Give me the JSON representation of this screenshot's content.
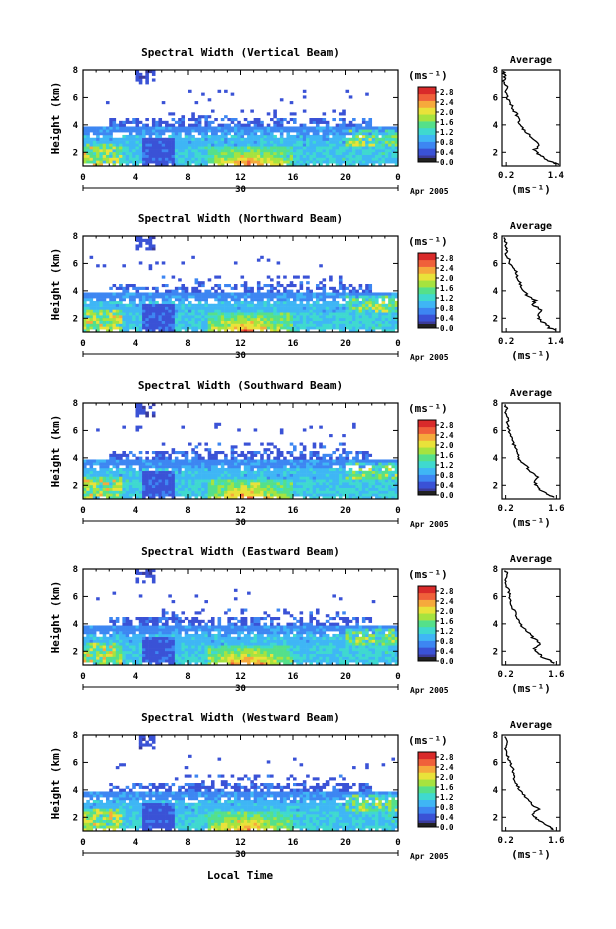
{
  "figure": {
    "xlabel": "Local Time",
    "date_label": "Apr 2005",
    "day_label": "30",
    "ylabel": "Height (km)",
    "colorbar_unit": "(ms⁻¹)",
    "profile_title": "Average",
    "profile_unit": "(ms⁻¹)"
  },
  "colors": {
    "colormap": [
      "#3b3b9a",
      "#3a52d6",
      "#3d86f2",
      "#3fb6f5",
      "#3fd9cf",
      "#55e08a",
      "#a6e33f",
      "#e9e23a",
      "#f6a93c",
      "#f0603a",
      "#d92a2a"
    ]
  },
  "chart_data": [
    {
      "type": "heatmap",
      "title": "Spectral Width (Vertical Beam)",
      "x_ticks": [
        "0",
        "4",
        "8",
        "12",
        "16",
        "20",
        "0"
      ],
      "y_ticks": [
        "2",
        "4",
        "6",
        "8"
      ],
      "xlim": [
        0,
        24
      ],
      "ylim": [
        1,
        8
      ],
      "colorbar_ticks": [
        "0.0",
        "0.4",
        "0.8",
        "1.2",
        "1.6",
        "2.0",
        "2.4",
        "2.8"
      ],
      "colorbar_range": [
        0,
        3.0
      ],
      "profile": {
        "title": "Average",
        "x_ticks": [
          "0.2",
          "1.4"
        ],
        "xlim": [
          0.1,
          1.5
        ],
        "y_ticks": [
          "2",
          "4",
          "6",
          "8"
        ],
        "ylim": [
          1,
          8
        ],
        "x": [
          1.45,
          1.3,
          1.1,
          0.95,
          0.9,
          1.0,
          0.8,
          0.75,
          0.6,
          0.55,
          0.5,
          0.45,
          0.35,
          0.3,
          0.22,
          0.18,
          0.2,
          0.15,
          0.18,
          0.12
        ],
        "y": [
          1.1,
          1.3,
          1.6,
          1.9,
          2.2,
          2.6,
          3.0,
          3.3,
          3.7,
          4.0,
          4.4,
          4.8,
          5.2,
          5.6,
          6.0,
          6.4,
          6.8,
          7.2,
          7.6,
          7.9
        ]
      }
    },
    {
      "type": "heatmap",
      "title": "Spectral Width (Northward Beam)",
      "x_ticks": [
        "0",
        "4",
        "8",
        "12",
        "16",
        "20",
        "0"
      ],
      "y_ticks": [
        "2",
        "4",
        "6",
        "8"
      ],
      "xlim": [
        0,
        24
      ],
      "ylim": [
        1,
        8
      ],
      "colorbar_ticks": [
        "0.0",
        "0.4",
        "0.8",
        "1.2",
        "1.6",
        "2.0",
        "2.4",
        "2.8"
      ],
      "colorbar_range": [
        0,
        3.0
      ],
      "profile": {
        "title": "Average",
        "x_ticks": [
          "0.2",
          "1.4"
        ],
        "xlim": [
          0.1,
          1.5
        ],
        "y_ticks": [
          "2",
          "4",
          "6",
          "8"
        ],
        "ylim": [
          1,
          8
        ],
        "x": [
          1.4,
          1.25,
          1.15,
          1.0,
          0.95,
          1.05,
          0.85,
          0.9,
          0.7,
          0.6,
          0.55,
          0.5,
          0.45,
          0.4,
          0.3,
          0.25,
          0.2,
          0.22,
          0.18,
          0.15
        ],
        "y": [
          1.1,
          1.3,
          1.6,
          1.9,
          2.2,
          2.6,
          3.0,
          3.3,
          3.7,
          4.0,
          4.4,
          4.8,
          5.2,
          5.6,
          6.0,
          6.4,
          6.8,
          7.2,
          7.6,
          7.9
        ]
      }
    },
    {
      "type": "heatmap",
      "title": "Spectral Width (Southward Beam)",
      "x_ticks": [
        "0",
        "4",
        "8",
        "12",
        "16",
        "20",
        "0"
      ],
      "y_ticks": [
        "2",
        "4",
        "6",
        "8"
      ],
      "xlim": [
        0,
        24
      ],
      "ylim": [
        1,
        8
      ],
      "colorbar_ticks": [
        "0.0",
        "0.4",
        "0.8",
        "1.2",
        "1.6",
        "2.0",
        "2.4",
        "2.8"
      ],
      "colorbar_range": [
        0,
        3.0
      ],
      "profile": {
        "title": "Average",
        "x_ticks": [
          "0.2",
          "1.6"
        ],
        "xlim": [
          0.1,
          1.7
        ],
        "y_ticks": [
          "2",
          "4",
          "6",
          "8"
        ],
        "ylim": [
          1,
          8
        ],
        "x": [
          1.55,
          1.4,
          1.2,
          1.05,
          1.0,
          1.1,
          0.9,
          0.8,
          0.65,
          0.55,
          0.5,
          0.45,
          0.4,
          0.35,
          0.3,
          0.28,
          0.25,
          0.2,
          0.25,
          0.18
        ],
        "y": [
          1.1,
          1.3,
          1.6,
          1.9,
          2.2,
          2.6,
          3.0,
          3.3,
          3.7,
          4.0,
          4.4,
          4.8,
          5.2,
          5.6,
          6.0,
          6.4,
          6.8,
          7.2,
          7.6,
          7.9
        ]
      }
    },
    {
      "type": "heatmap",
      "title": "Spectral Width (Eastward Beam)",
      "x_ticks": [
        "0",
        "4",
        "8",
        "12",
        "16",
        "20",
        "0"
      ],
      "y_ticks": [
        "2",
        "4",
        "6",
        "8"
      ],
      "xlim": [
        0,
        24
      ],
      "ylim": [
        1,
        8
      ],
      "colorbar_ticks": [
        "0.0",
        "0.4",
        "0.8",
        "1.2",
        "1.6",
        "2.0",
        "2.4",
        "2.8"
      ],
      "colorbar_range": [
        0,
        3.0
      ],
      "profile": {
        "title": "Average",
        "x_ticks": [
          "0.2",
          "1.6"
        ],
        "xlim": [
          0.1,
          1.7
        ],
        "y_ticks": [
          "2",
          "4",
          "6",
          "8"
        ],
        "ylim": [
          1,
          8
        ],
        "x": [
          1.55,
          1.45,
          1.2,
          1.1,
          1.0,
          1.15,
          0.95,
          0.85,
          0.7,
          0.6,
          0.5,
          0.45,
          0.4,
          0.35,
          0.3,
          0.28,
          0.22,
          0.2,
          0.25,
          0.18
        ],
        "y": [
          1.1,
          1.3,
          1.6,
          1.9,
          2.2,
          2.6,
          3.0,
          3.3,
          3.7,
          4.0,
          4.4,
          4.8,
          5.2,
          5.6,
          6.0,
          6.4,
          6.8,
          7.2,
          7.6,
          7.9
        ]
      }
    },
    {
      "type": "heatmap",
      "title": "Spectral Width (Westward Beam)",
      "x_ticks": [
        "0",
        "4",
        "8",
        "12",
        "16",
        "20",
        "0"
      ],
      "y_ticks": [
        "2",
        "4",
        "6",
        "8"
      ],
      "xlim": [
        0,
        24
      ],
      "ylim": [
        1,
        8
      ],
      "colorbar_ticks": [
        "0.0",
        "0.4",
        "0.8",
        "1.2",
        "1.6",
        "2.0",
        "2.4",
        "2.8"
      ],
      "colorbar_range": [
        0,
        3.0
      ],
      "profile": {
        "title": "Average",
        "x_ticks": [
          "0.2",
          "1.6"
        ],
        "xlim": [
          0.1,
          1.7
        ],
        "y_ticks": [
          "2",
          "4",
          "6",
          "8"
        ],
        "ylim": [
          1,
          8
        ],
        "x": [
          1.5,
          1.4,
          1.25,
          1.05,
          0.95,
          1.1,
          0.9,
          0.8,
          0.7,
          0.6,
          0.5,
          0.45,
          0.4,
          0.38,
          0.3,
          0.25,
          0.22,
          0.2,
          0.22,
          0.18
        ],
        "y": [
          1.1,
          1.3,
          1.6,
          1.9,
          2.2,
          2.6,
          3.0,
          3.3,
          3.7,
          4.0,
          4.4,
          4.8,
          5.2,
          5.6,
          6.0,
          6.4,
          6.8,
          7.2,
          7.6,
          7.9
        ]
      }
    }
  ]
}
